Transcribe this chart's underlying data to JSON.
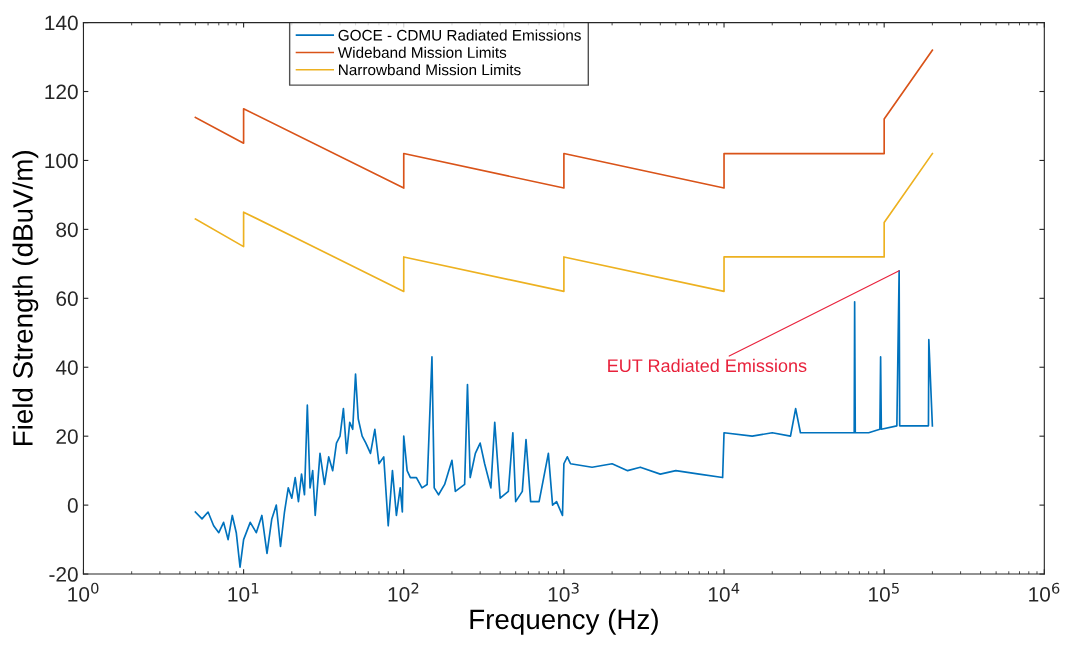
{
  "chart_data": {
    "type": "line",
    "xlabel": "Frequency (Hz)",
    "ylabel": "Field Strength (dBuV/m)",
    "log": "x",
    "xlim": [
      1,
      1000000
    ],
    "ylim": [
      -20,
      140
    ],
    "xticks": [
      {
        "value": 1,
        "label": "10$^{0}$"
      },
      {
        "value": 10,
        "label": "10$^{1}$"
      },
      {
        "value": 100,
        "label": "10$^{2}$"
      },
      {
        "value": 1000,
        "label": "10$^{3}$"
      },
      {
        "value": 10000,
        "label": "10$^{4}$"
      },
      {
        "value": 100000,
        "label": "10$^{5}$"
      },
      {
        "value": 1000000,
        "label": "10$^{6}$"
      }
    ],
    "yticks": [
      -20,
      0,
      20,
      40,
      60,
      80,
      100,
      120,
      140
    ],
    "grid": false,
    "legend": "top",
    "marker": "none",
    "line_style": "solid",
    "series": [
      {
        "name": "GOCE - CDMU Radiated Emissions",
        "color": "#0072bd",
        "x": [
          5,
          5.5,
          6,
          6.5,
          7,
          7.5,
          8,
          8.5,
          9,
          9.5,
          10,
          11,
          12,
          13,
          14,
          15,
          16,
          17,
          18,
          19,
          20,
          21,
          22,
          23,
          24,
          25,
          26,
          27,
          28,
          30,
          32,
          34,
          36,
          38,
          40,
          42,
          44,
          46,
          48,
          50,
          52,
          55,
          58,
          62,
          66,
          70,
          75,
          80,
          85,
          90,
          95,
          98,
          100,
          105,
          110,
          120,
          130,
          140,
          150,
          155,
          165,
          180,
          200,
          210,
          240,
          250,
          260,
          280,
          300,
          320,
          350,
          370,
          400,
          450,
          480,
          500,
          550,
          580,
          620,
          700,
          800,
          850,
          900,
          980,
          1000,
          1050,
          1100,
          1500,
          2000,
          2500,
          3000,
          4000,
          5000,
          7000,
          9800,
          10000,
          15000,
          20000,
          26000,
          28000,
          30000,
          40000,
          60000,
          65000,
          65400,
          66000,
          80000,
          94000,
          95000,
          96000,
          120000,
          124000,
          125000,
          160000,
          189000,
          190000,
          200000
        ],
        "values": [
          -2,
          -4,
          -2,
          -6,
          -8,
          -5,
          -10,
          -3,
          -8,
          -18,
          -10,
          -5,
          -8,
          -3,
          -14,
          -4,
          0,
          -12,
          -2,
          5,
          2,
          8,
          1,
          9,
          3,
          29,
          5,
          10,
          -3,
          15,
          6,
          14,
          10,
          18,
          20,
          28,
          15,
          24,
          22,
          38,
          25,
          20,
          18,
          15,
          22,
          12,
          14,
          -6,
          10,
          -3,
          5,
          -2,
          20,
          10,
          8,
          8,
          5,
          6,
          43,
          5,
          3,
          6,
          13,
          4,
          6,
          35,
          8,
          15,
          18,
          12,
          5,
          24,
          2,
          4,
          21,
          1,
          4,
          19,
          1,
          1,
          15,
          0,
          1,
          -3,
          12,
          14,
          12,
          11,
          12,
          10,
          11,
          9,
          10,
          9,
          8,
          21,
          20,
          21,
          20,
          28,
          21,
          21,
          21,
          21,
          59,
          21,
          21,
          22,
          43,
          22,
          23,
          68,
          23,
          23,
          23,
          48,
          23
        ]
      },
      {
        "name": "Wideband Mission Limits",
        "color": "#d95319",
        "x": [
          5,
          10,
          10,
          100,
          100,
          1000,
          1000,
          10000,
          10000,
          100000,
          100000,
          200000
        ],
        "values": [
          112.5,
          105,
          115,
          92,
          102,
          92,
          102,
          92,
          102,
          102,
          112,
          132
        ]
      },
      {
        "name": "Narrowband Mission Limits",
        "color": "#edb120",
        "x": [
          5,
          10,
          10,
          100,
          100,
          1000,
          1000,
          10000,
          10000,
          100000,
          100000,
          200000
        ],
        "values": [
          83,
          75,
          85,
          62,
          72,
          62,
          72,
          62,
          72,
          72,
          82,
          102
        ]
      }
    ],
    "annotations": [
      {
        "text": "EUT Radiated Emissions",
        "x": 124000,
        "y": 68
      }
    ]
  }
}
